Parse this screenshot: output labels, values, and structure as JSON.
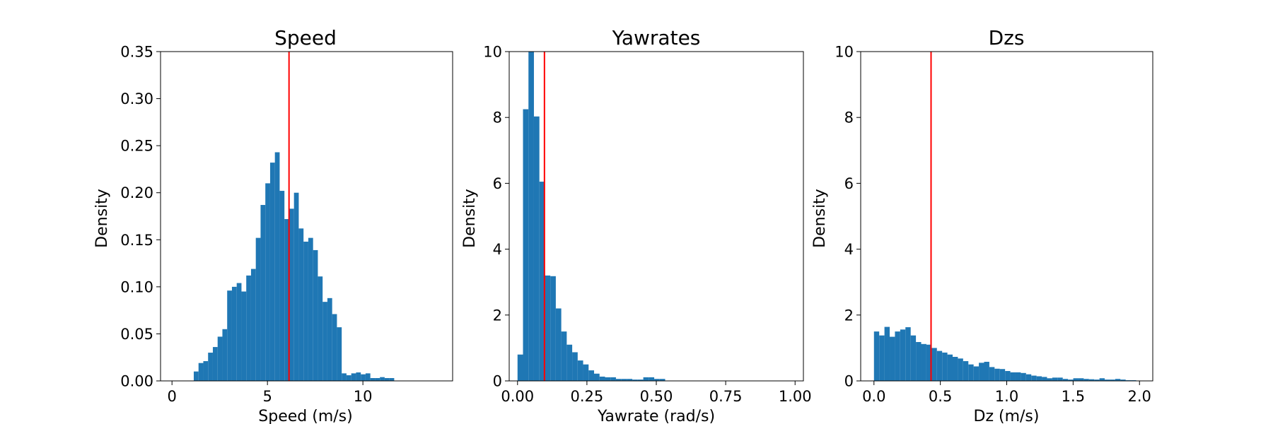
{
  "chart_data": [
    {
      "type": "bar",
      "title": "Speed",
      "xlabel": "Speed (m/s)",
      "ylabel": "Density",
      "xlim": [
        -0.6,
        14.7
      ],
      "ylim": [
        0,
        0.35
      ],
      "xticks": [
        0,
        5,
        10
      ],
      "xtick_labels": [
        "0",
        "5",
        "10"
      ],
      "yticks": [
        0,
        0.05,
        0.1,
        0.15,
        0.2,
        0.25,
        0.3,
        0.35
      ],
      "ytick_labels": [
        "0.00",
        "0.05",
        "0.10",
        "0.15",
        "0.20",
        "0.25",
        "0.30",
        "0.35"
      ],
      "bin_start": 1.14,
      "bin_width": 0.25,
      "values": [
        0.01,
        0.019,
        0.021,
        0.03,
        0.036,
        0.047,
        0.055,
        0.096,
        0.1,
        0.104,
        0.095,
        0.112,
        0.119,
        0.152,
        0.187,
        0.21,
        0.232,
        0.243,
        0.202,
        0.172,
        0.183,
        0.2,
        0.162,
        0.148,
        0.152,
        0.139,
        0.111,
        0.084,
        0.088,
        0.071,
        0.057,
        0.008,
        0.006,
        0.008,
        0.009,
        0.007,
        0.008,
        0.003,
        0.003,
        0.004,
        0.003,
        0.003
      ],
      "vline": 6.13,
      "vline_color": "#ff0000",
      "bar_color": "#1f77b4",
      "grid": false
    },
    {
      "type": "bar",
      "title": "Yawrates",
      "xlabel": "Yawrate (rad/s)",
      "ylabel": "Density",
      "xlim": [
        -0.03,
        1.03
      ],
      "ylim": [
        0,
        10
      ],
      "xticks": [
        0,
        0.25,
        0.5,
        0.75,
        1
      ],
      "xtick_labels": [
        "0.00",
        "0.25",
        "0.50",
        "0.75",
        "1.00"
      ],
      "yticks": [
        0,
        2,
        4,
        6,
        8,
        10
      ],
      "ytick_labels": [
        "0",
        "2",
        "4",
        "6",
        "8",
        "10"
      ],
      "bin_start": 0.0,
      "bin_width": 0.0197,
      "values": [
        0.8,
        8.25,
        10.2,
        8.03,
        6.05,
        3.2,
        3.18,
        2.2,
        1.5,
        1.1,
        0.87,
        0.62,
        0.5,
        0.32,
        0.22,
        0.13,
        0.11,
        0.11,
        0.06,
        0.06,
        0.06,
        0.04,
        0.04,
        0.11,
        0.11,
        0.06,
        0.06
      ],
      "vline": 0.097,
      "vline_color": "#ff0000",
      "bar_color": "#1f77b4",
      "grid": false
    },
    {
      "type": "bar",
      "title": "Dzs",
      "xlabel": "Dz (m/s)",
      "ylabel": "Density",
      "xlim": [
        -0.1,
        2.1
      ],
      "ylim": [
        0,
        10
      ],
      "xticks": [
        0,
        0.5,
        1,
        1.5,
        2
      ],
      "xtick_labels": [
        "0.0",
        "0.5",
        "1.0",
        "1.5",
        "2.0"
      ],
      "yticks": [
        0,
        2,
        4,
        6,
        8,
        10
      ],
      "ytick_labels": [
        "0",
        "2",
        "4",
        "6",
        "8",
        "10"
      ],
      "bin_start": 0.0,
      "bin_width": 0.0395,
      "values": [
        1.5,
        1.38,
        1.64,
        1.34,
        1.5,
        1.56,
        1.63,
        1.38,
        1.18,
        1.12,
        1.1,
        1.0,
        0.91,
        0.86,
        0.8,
        0.73,
        0.68,
        0.6,
        0.5,
        0.44,
        0.55,
        0.58,
        0.42,
        0.37,
        0.36,
        0.3,
        0.26,
        0.26,
        0.24,
        0.2,
        0.16,
        0.14,
        0.12,
        0.08,
        0.1,
        0.1,
        0.06,
        0.04,
        0.08,
        0.08,
        0.06,
        0.05,
        0.04,
        0.08,
        0.04,
        0.04,
        0.06,
        0.04,
        0.02,
        0.02,
        0.01
      ],
      "vline": 0.43,
      "vline_color": "#ff0000",
      "bar_color": "#1f77b4",
      "grid": false
    }
  ]
}
